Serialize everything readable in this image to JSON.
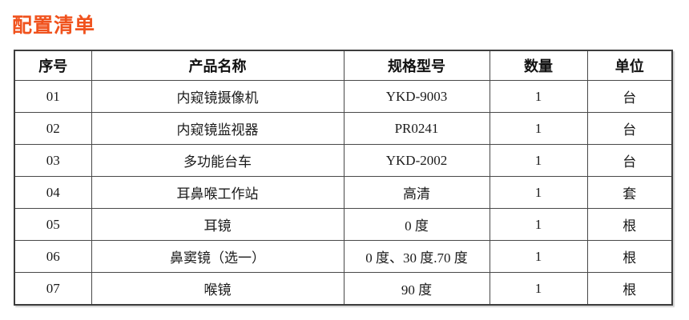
{
  "page": {
    "title": "配置清单",
    "title_color": "#f0521d"
  },
  "table": {
    "columns": [
      "序号",
      "产品名称",
      "规格型号",
      "数量",
      "单位"
    ],
    "rows": [
      [
        "01",
        "内窥镜摄像机",
        "YKD-9003",
        "1",
        "台"
      ],
      [
        "02",
        "内窥镜监视器",
        "PR0241",
        "1",
        "台"
      ],
      [
        "03",
        "多功能台车",
        "YKD-2002",
        "1",
        "台"
      ],
      [
        "04",
        "耳鼻喉工作站",
        "高清",
        "1",
        "套"
      ],
      [
        "05",
        "耳镜",
        "0 度",
        "1",
        "根"
      ],
      [
        "06",
        "鼻窦镜（选一）",
        "0 度、30 度.70 度",
        "1",
        "根"
      ],
      [
        "07",
        "喉镜",
        "90 度",
        "1",
        "根"
      ]
    ]
  }
}
